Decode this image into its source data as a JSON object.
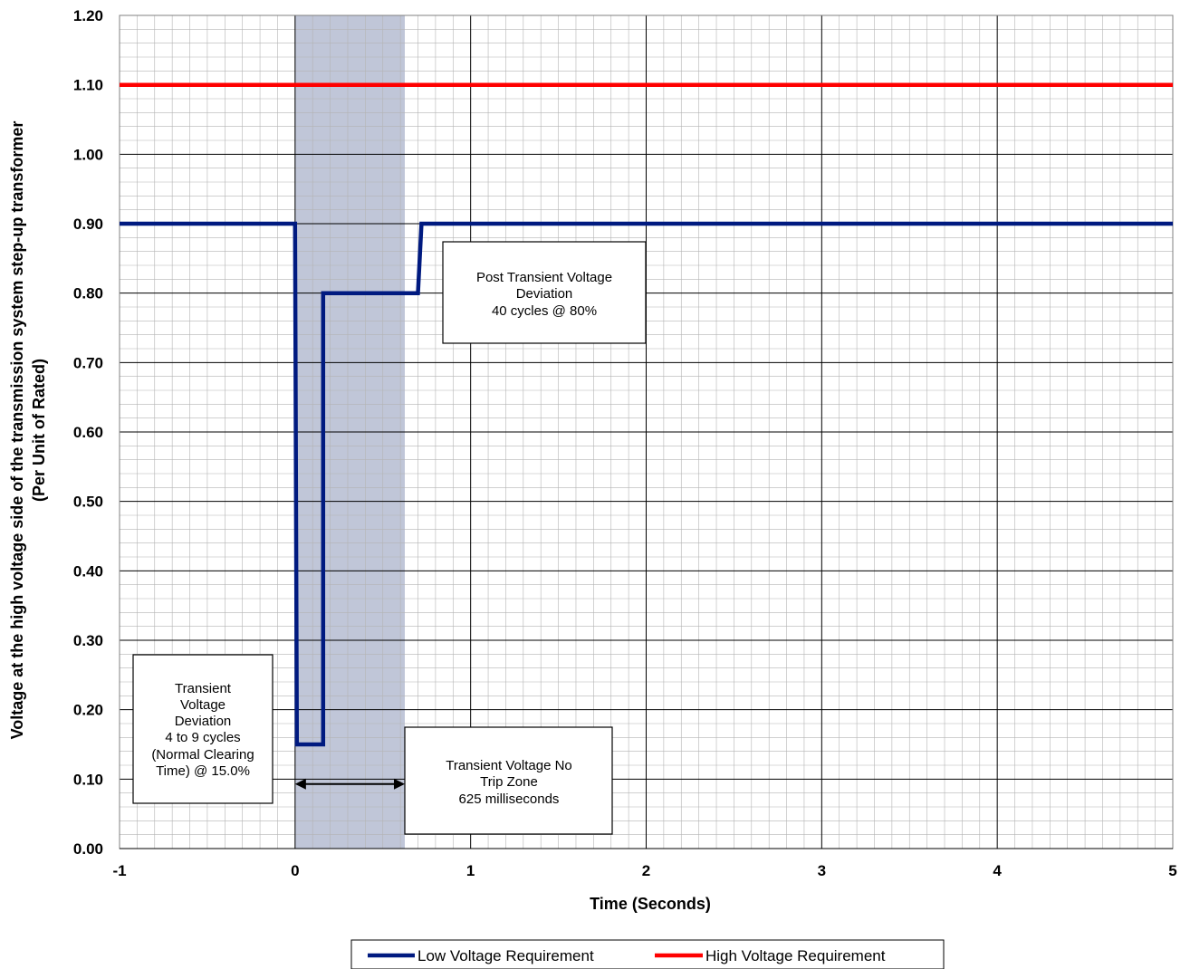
{
  "chart_data": {
    "type": "line",
    "title": "",
    "xlabel": "Time (Seconds)",
    "ylabel": [
      "Voltage at the high voltage side of the transmission system step-up transformer",
      "(Per Unit of Rated)"
    ],
    "xlim": [
      -1,
      5
    ],
    "ylim": [
      0,
      1.2
    ],
    "x_ticks": [
      "-1",
      "0",
      "1",
      "2",
      "3",
      "4",
      "5"
    ],
    "y_ticks": [
      "0.00",
      "0.10",
      "0.20",
      "0.30",
      "0.40",
      "0.50",
      "0.60",
      "0.70",
      "0.80",
      "0.90",
      "1.00",
      "1.10",
      "1.20"
    ],
    "grid": true,
    "legend_position": "bottom",
    "shaded_region": {
      "x": [
        0,
        0.625
      ],
      "color": "#c0c6d8"
    },
    "series": [
      {
        "name": "Low Voltage Requirement",
        "color": "#001a80",
        "points": [
          [
            -1,
            0.9
          ],
          [
            0,
            0.9
          ],
          [
            0.01,
            0.15
          ],
          [
            0.16,
            0.15
          ],
          [
            0.16,
            0.8
          ],
          [
            0.7,
            0.8
          ],
          [
            0.72,
            0.9
          ],
          [
            5,
            0.9
          ]
        ]
      },
      {
        "name": "High Voltage Requirement",
        "color": "#ff0000",
        "points": [
          [
            -1,
            1.1
          ],
          [
            5,
            1.1
          ]
        ]
      }
    ],
    "annotations": [
      {
        "id": "post-transient",
        "lines": [
          "Post Transient Voltage",
          "Deviation",
          "40 cycles @ 80%"
        ]
      },
      {
        "id": "transient-deviation",
        "lines": [
          "Transient",
          "Voltage",
          "Deviation",
          "4 to 9 cycles",
          "(Normal Clearing",
          "Time) @ 15.0%"
        ]
      },
      {
        "id": "no-trip-zone",
        "lines": [
          "Transient Voltage No",
          "Trip Zone",
          "625 milliseconds"
        ]
      }
    ],
    "arrow": {
      "x": [
        0,
        0.625
      ],
      "y": 0.093
    }
  }
}
